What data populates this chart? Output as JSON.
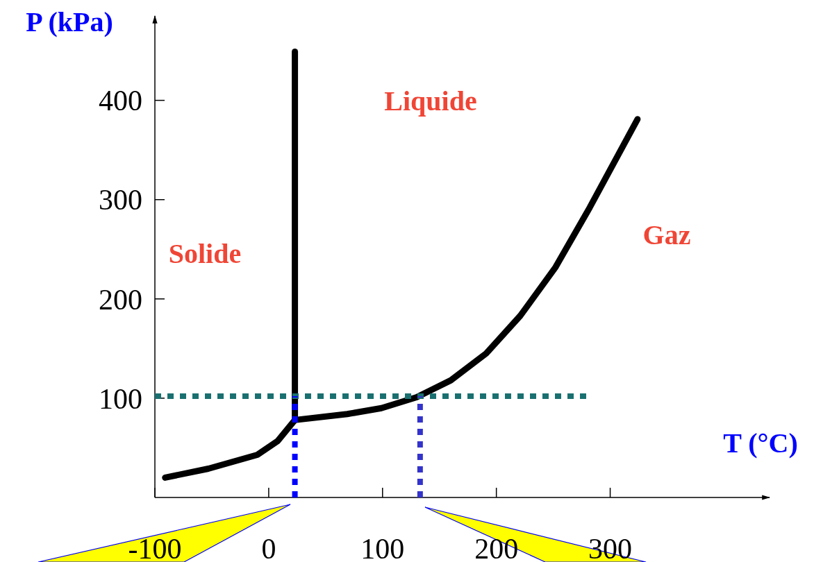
{
  "chart_data": {
    "type": "line",
    "xlabel": "T (°C)",
    "ylabel": "P (kPa)",
    "xlim": [
      -100,
      440
    ],
    "ylim": [
      0,
      485
    ],
    "xticks": [
      -100,
      0,
      100,
      200,
      300
    ],
    "yticks": [
      100,
      200,
      300,
      400
    ],
    "grid": false,
    "marker": "none",
    "series": [
      {
        "color": "#000000",
        "line_style": "solid",
        "x": [
          -91,
          -53,
          -10,
          8,
          23
        ],
        "values": [
          20,
          29,
          43,
          57,
          78
        ]
      },
      {
        "color": "#000000",
        "line_style": "solid",
        "x": [
          23,
          23
        ],
        "values": [
          78,
          449
        ]
      },
      {
        "color": "#000000",
        "line_style": "solid",
        "x": [
          23,
          69,
          99,
          130,
          160,
          191,
          221,
          252,
          282,
          324
        ],
        "values": [
          78,
          84,
          90,
          101,
          118,
          145,
          183,
          232,
          292,
          381
        ]
      },
      {
        "color": "#1a7070",
        "line_style": "dotted",
        "x": [
          -100,
          282
        ],
        "values": [
          102,
          102
        ]
      },
      {
        "color": "#0000ff",
        "line_style": "dotted",
        "x": [
          23,
          23
        ],
        "values": [
          0,
          102
        ]
      },
      {
        "color": "#3333cc",
        "line_style": "dotted",
        "x": [
          133,
          133
        ],
        "values": [
          0,
          102
        ]
      }
    ],
    "annotations": [
      "Solide",
      "Liquide",
      "Gaz"
    ]
  }
}
